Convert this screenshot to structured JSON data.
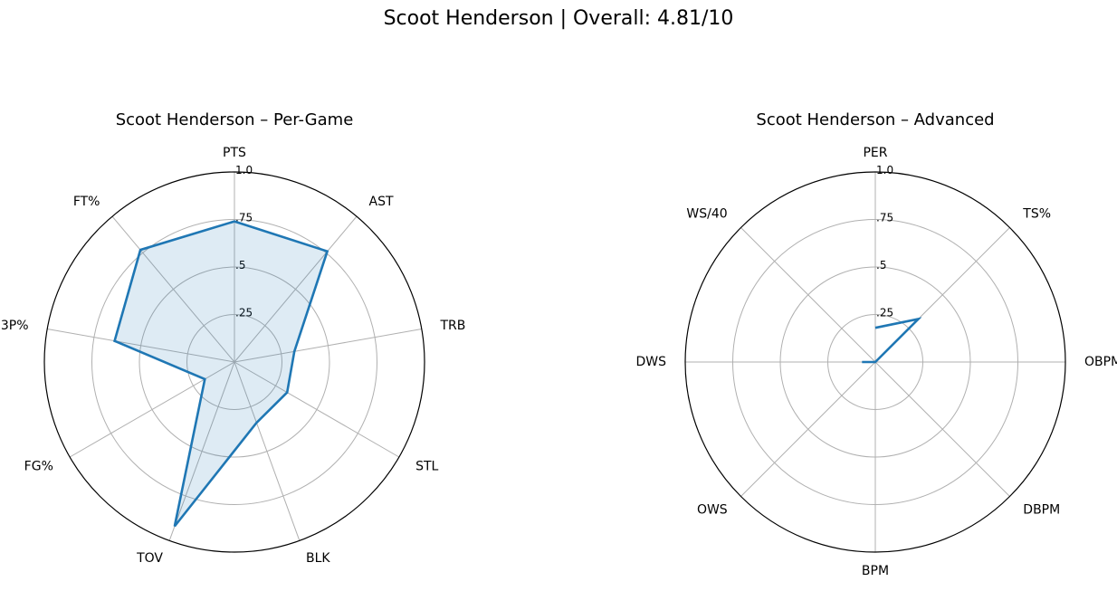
{
  "figure_title": "Scoot Henderson | Overall: 4.81/10",
  "colors": {
    "series_line": "#1f77b4",
    "series_fill": "#1f77b4",
    "grid": "#b0b0b0",
    "outer_ring": "#000000"
  },
  "chart_data": [
    {
      "type": "radar",
      "title": "Scoot Henderson – Per-Game",
      "axes": [
        "PTS",
        "AST",
        "TRB",
        "STL",
        "BLK",
        "TOV",
        "FG%",
        "3P%",
        "FT%"
      ],
      "values": [
        0.74,
        0.76,
        0.32,
        0.32,
        0.34,
        0.92,
        0.18,
        0.64,
        0.77
      ],
      "rlim": [
        0,
        1
      ],
      "rticks": [
        0.25,
        0.5,
        0.75,
        1.0
      ],
      "rtick_labels": [
        ".25",
        ".5",
        ".75",
        "1.0"
      ],
      "filled": true,
      "closed": true,
      "grid": true
    },
    {
      "type": "radar",
      "title": "Scoot Henderson – Advanced",
      "axes": [
        "PER",
        "TS%",
        "OBPM",
        "DBPM",
        "BPM",
        "OWS",
        "DWS",
        "WS/40"
      ],
      "values": [
        0.18,
        0.32,
        0.0,
        0.0,
        0.0,
        0.0,
        0.07,
        0.0
      ],
      "rlim": [
        0,
        1
      ],
      "rticks": [
        0.25,
        0.5,
        0.75,
        1.0
      ],
      "rtick_labels": [
        ".25",
        ".5",
        ".75",
        "1.0"
      ],
      "filled": false,
      "closed": false,
      "grid": true
    }
  ]
}
